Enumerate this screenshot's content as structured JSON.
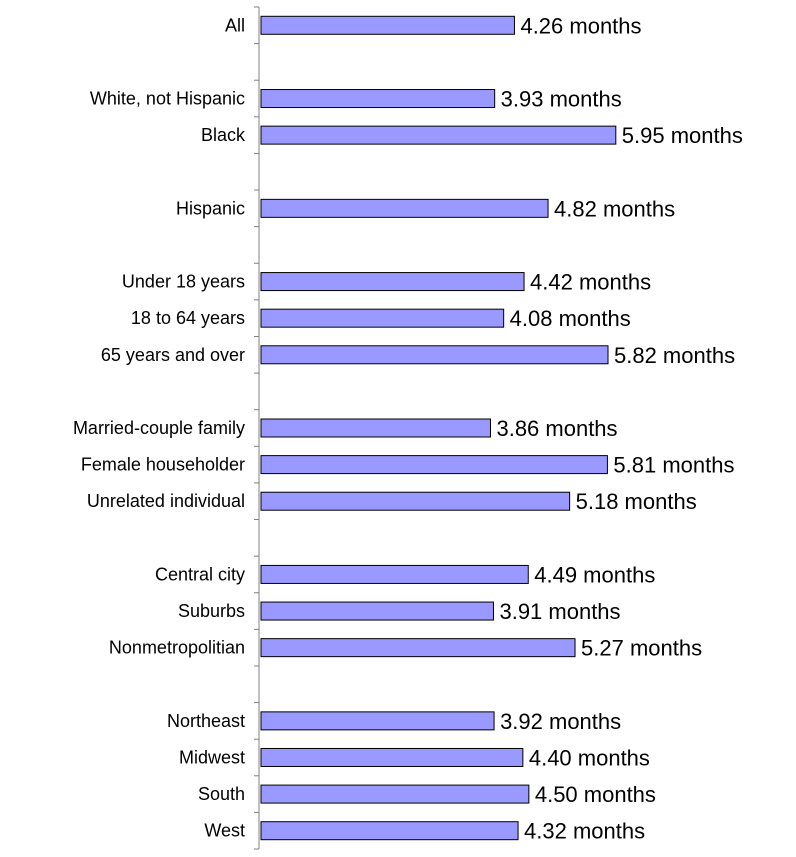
{
  "chart_data": {
    "type": "bar",
    "orientation": "horizontal",
    "title": "",
    "xlabel": "",
    "ylabel": "",
    "unit_suffix": " months",
    "xlim": [
      0,
      6.17
    ],
    "grid": false,
    "legend": "none",
    "bar_color": "#9999ff",
    "bar_outline": "#000000",
    "slots": [
      {
        "label": "All",
        "value": 4.26,
        "display": "4.26 months"
      },
      null,
      {
        "label": "White, not Hispanic",
        "value": 3.93,
        "display": "3.93 months"
      },
      {
        "label": "Black",
        "value": 5.95,
        "display": "5.95 months"
      },
      null,
      {
        "label": "Hispanic",
        "value": 4.82,
        "display": "4.82 months"
      },
      null,
      {
        "label": "Under 18 years",
        "value": 4.42,
        "display": "4.42 months"
      },
      {
        "label": "18 to 64 years",
        "value": 4.08,
        "display": "4.08 months"
      },
      {
        "label": "65 years and over",
        "value": 5.82,
        "display": "5.82 months"
      },
      null,
      {
        "label": "Married-couple family",
        "value": 3.86,
        "display": "3.86 months"
      },
      {
        "label": "Female householder",
        "value": 5.81,
        "display": "5.81 months"
      },
      {
        "label": "Unrelated individual",
        "value": 5.18,
        "display": "5.18 months"
      },
      null,
      {
        "label": "Central city",
        "value": 4.49,
        "display": "4.49 months"
      },
      {
        "label": "Suburbs",
        "value": 3.91,
        "display": "3.91 months"
      },
      {
        "label": "Nonmetropolitian",
        "value": 5.27,
        "display": "5.27 months"
      },
      null,
      {
        "label": "Northeast",
        "value": 3.92,
        "display": "3.92 months"
      },
      {
        "label": "Midwest",
        "value": 4.4,
        "display": "4.40 months"
      },
      {
        "label": "South",
        "value": 4.5,
        "display": "4.50 months"
      },
      {
        "label": "West",
        "value": 4.32,
        "display": "4.32 months"
      }
    ]
  }
}
